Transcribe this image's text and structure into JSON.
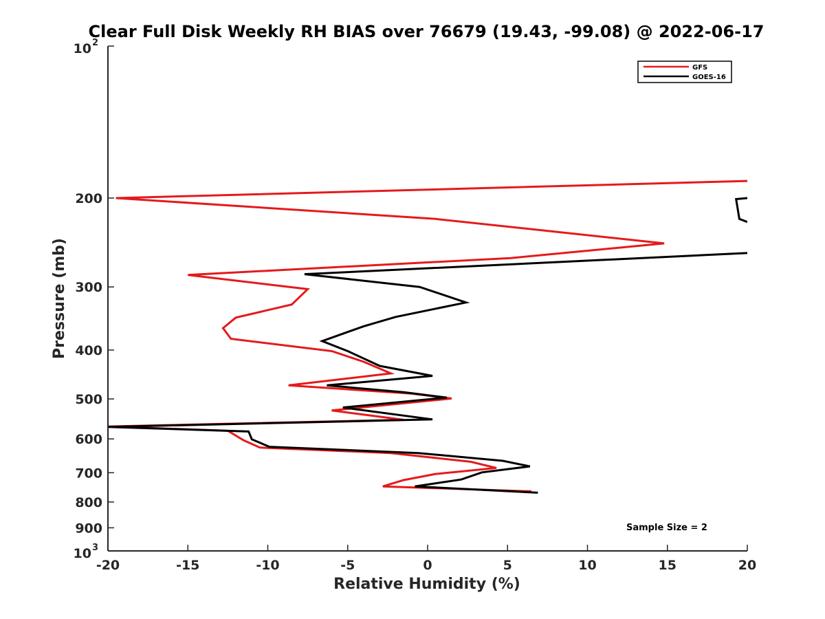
{
  "chart_data": {
    "type": "line",
    "title": "Clear Full Disk Weekly RH BIAS over 76679 (19.43, -99.08) @ 2022-06-17",
    "xlabel": "Relative Humidity (%)",
    "ylabel": "Pressure (mb)",
    "xlim": [
      -20,
      20
    ],
    "ylim": [
      100,
      1000
    ],
    "y_scale": "log",
    "y_reversed": true,
    "grid": false,
    "legend_position": "top-right",
    "x_ticks": [
      -20,
      -15,
      -10,
      -5,
      0,
      5,
      10,
      15,
      20
    ],
    "x_tick_labels": [
      "-20",
      "-15",
      "-10",
      "-5",
      "0",
      "5",
      "10",
      "15",
      "20"
    ],
    "y_ticks": [
      {
        "value": 100,
        "base": "10",
        "exp": "2"
      },
      {
        "value": 200,
        "label": "200"
      },
      {
        "value": 300,
        "label": "300"
      },
      {
        "value": 400,
        "label": "400"
      },
      {
        "value": 500,
        "label": "500"
      },
      {
        "value": 600,
        "label": "600"
      },
      {
        "value": 700,
        "label": "700"
      },
      {
        "value": 800,
        "label": "800"
      },
      {
        "value": 900,
        "label": "900"
      },
      {
        "value": 1000,
        "base": "10",
        "exp": "3"
      }
    ],
    "annotation": "Sample Size = 2",
    "series": [
      {
        "name": "GFS",
        "color": "#e41a1c",
        "points": [
          [
            20,
            185
          ],
          [
            -19.5,
            200
          ],
          [
            0.5,
            220
          ],
          [
            14.8,
            246
          ],
          [
            5.2,
            263
          ],
          [
            -15,
            284
          ],
          [
            -7.5,
            303
          ],
          [
            -8.5,
            325
          ],
          [
            -12,
            345
          ],
          [
            -12.8,
            362
          ],
          [
            -12.3,
            380
          ],
          [
            -6,
            402
          ],
          [
            -4,
            422
          ],
          [
            -2.3,
            445
          ],
          [
            -8.7,
            470
          ],
          [
            -1,
            488
          ],
          [
            1.5,
            499
          ],
          [
            -6,
            527
          ],
          [
            -1.5,
            550
          ],
          [
            -20,
            567
          ],
          [
            -12.5,
            578
          ],
          [
            -11.5,
            604
          ],
          [
            -10.5,
            624
          ],
          [
            -2.3,
            640
          ],
          [
            2.7,
            666
          ],
          [
            4.3,
            685
          ],
          [
            0.5,
            704
          ],
          [
            -1.5,
            724
          ],
          [
            -2.8,
            745
          ],
          [
            6.5,
            762
          ]
        ]
      },
      {
        "name": "GOES-16",
        "color": "#000000",
        "points": [
          [
            20,
            200
          ],
          [
            19.3,
            201
          ],
          [
            19.5,
            220
          ],
          [
            20,
            223
          ],
          null,
          [
            20,
            257
          ],
          [
            -7.7,
            283
          ],
          [
            -0.5,
            300
          ],
          [
            2.4,
            322
          ],
          [
            -2,
            344
          ],
          [
            -4,
            359
          ],
          [
            -6.6,
            384
          ],
          [
            -5,
            402
          ],
          [
            -3,
            430
          ],
          [
            0.3,
            450
          ],
          [
            -6.3,
            470
          ],
          [
            -1.5,
            485
          ],
          [
            1.2,
            497
          ],
          [
            -5.3,
            520
          ],
          [
            0.3,
            549
          ],
          [
            -20,
            568
          ],
          [
            -11.2,
            580
          ],
          [
            -11,
            601
          ],
          [
            -9.9,
            622
          ],
          [
            -0.6,
            640
          ],
          [
            4.7,
            663
          ],
          [
            6.4,
            680
          ],
          [
            3.4,
            699
          ],
          [
            2.1,
            722
          ],
          [
            -0.8,
            745
          ],
          [
            6.9,
            767
          ]
        ]
      }
    ]
  }
}
